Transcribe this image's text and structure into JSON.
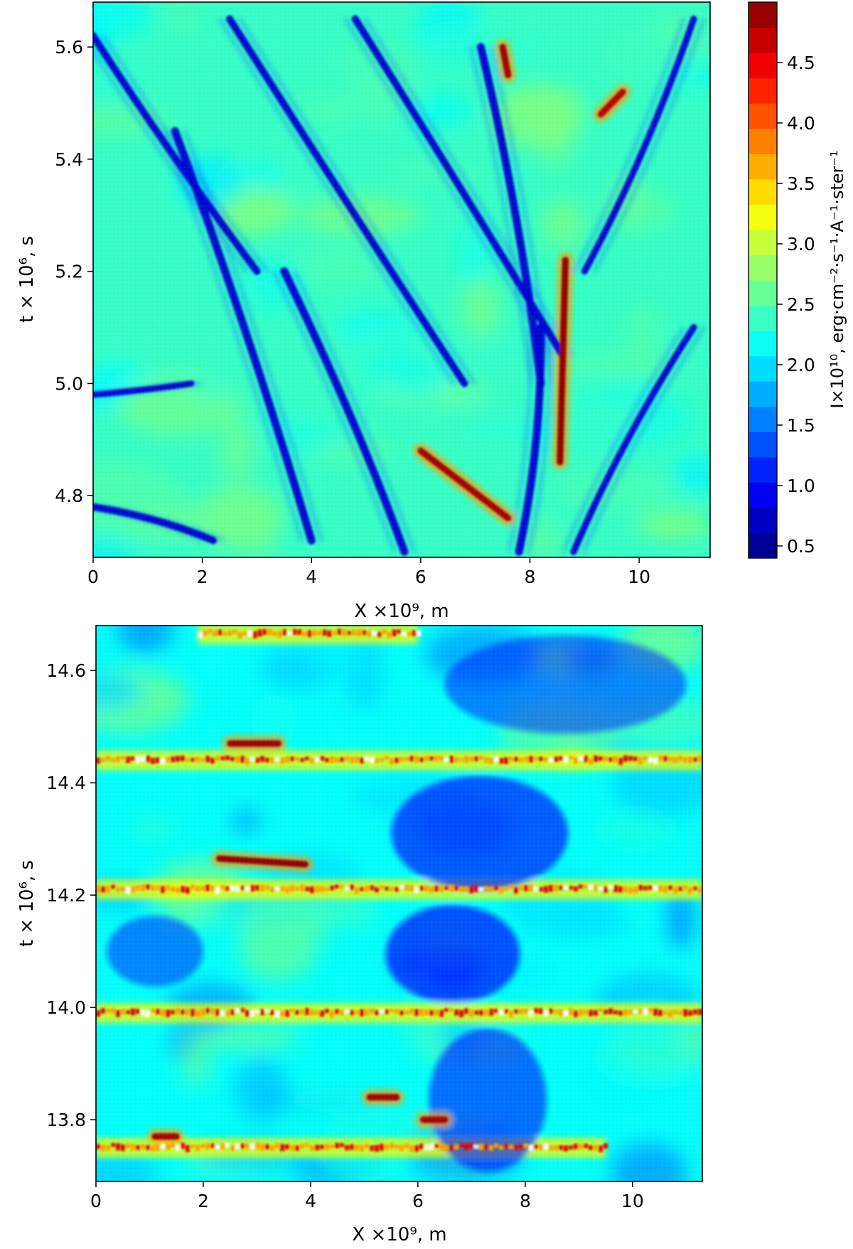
{
  "chart_data": [
    {
      "type": "heatmap",
      "xlabel": "X ×10⁹, m",
      "ylabel": "t × 10⁶, s",
      "xlim": [
        0,
        11.3
      ],
      "ylim": [
        4.69,
        5.68
      ],
      "x_ticks": [
        0,
        2,
        4,
        6,
        8,
        10
      ],
      "x_tick_labels": [
        "0",
        "2",
        "4",
        "6",
        "8",
        "10"
      ],
      "y_ticks": [
        4.8,
        5.0,
        5.2,
        5.4,
        5.6
      ],
      "y_tick_labels": [
        "4.8",
        "5.0",
        "5.2",
        "5.4",
        "5.6"
      ],
      "colormap": "jet",
      "colorbar": {
        "label": "I×10¹⁰, erg·cm⁻²·s⁻¹·A⁻¹·ster⁻¹",
        "range": [
          0.4,
          5.0
        ],
        "ticks": [
          0.5,
          1.0,
          1.5,
          2.0,
          2.5,
          3.0,
          3.5,
          4.0,
          4.5
        ],
        "tick_labels": [
          "0.5",
          "1.0",
          "1.5",
          "2.0",
          "2.5",
          "3.0",
          "3.5",
          "4.0",
          "4.5"
        ],
        "levels": 22
      },
      "features": [
        {
          "shape": "band",
          "x_from": 0.0,
          "t_from": 5.62,
          "x_to": 3.0,
          "t_to": 5.2,
          "intensity": 0.8
        },
        {
          "shape": "band",
          "x_from": 1.5,
          "t_from": 5.45,
          "x_to": 4.0,
          "t_to": 4.72,
          "intensity": 0.9
        },
        {
          "shape": "band",
          "x_from": 2.5,
          "t_from": 5.65,
          "x_to": 6.8,
          "t_to": 5.0,
          "intensity": 0.8
        },
        {
          "shape": "band",
          "x_from": 4.8,
          "t_from": 5.65,
          "x_to": 8.6,
          "t_to": 5.05,
          "intensity": 0.8
        },
        {
          "shape": "band",
          "x_from": 7.1,
          "t_from": 5.6,
          "x_to": 8.2,
          "t_to": 5.0,
          "intensity": 0.9
        },
        {
          "shape": "band",
          "x_from": 8.2,
          "t_from": 5.1,
          "x_to": 7.8,
          "t_to": 4.7,
          "intensity": 0.9
        },
        {
          "shape": "band",
          "x_from": 3.5,
          "t_from": 5.2,
          "x_to": 5.7,
          "t_to": 4.7,
          "intensity": 0.9
        },
        {
          "shape": "band",
          "x_from": 0.0,
          "t_from": 4.78,
          "x_to": 2.2,
          "t_to": 4.72,
          "intensity": 0.8
        },
        {
          "shape": "band",
          "x_from": 9.0,
          "t_from": 5.2,
          "x_to": 11.0,
          "t_to": 5.65,
          "intensity": 0.7
        },
        {
          "shape": "band",
          "x_from": 8.8,
          "t_from": 4.7,
          "x_to": 11.0,
          "t_to": 5.1,
          "intensity": 0.7
        },
        {
          "shape": "band",
          "x_from": 0.0,
          "t_from": 4.98,
          "x_to": 1.8,
          "t_to": 5.0,
          "intensity": 0.6
        },
        {
          "shape": "bright",
          "x_from": 8.65,
          "t_from": 5.22,
          "x_to": 8.55,
          "t_to": 4.86,
          "intensity": 1.0
        },
        {
          "shape": "bright",
          "x_from": 7.5,
          "t_from": 5.6,
          "x_to": 7.6,
          "t_to": 5.55,
          "intensity": 0.85
        },
        {
          "shape": "bright",
          "x_from": 6.0,
          "t_from": 4.88,
          "x_to": 7.6,
          "t_to": 4.76,
          "intensity": 0.8
        },
        {
          "shape": "bright",
          "x_from": 9.3,
          "t_from": 5.48,
          "x_to": 9.7,
          "t_to": 5.52,
          "intensity": 0.6
        }
      ]
    },
    {
      "type": "heatmap",
      "xlabel": "X ×10⁹, m",
      "ylabel": "t × 10⁶, s",
      "xlim": [
        0,
        11.3
      ],
      "ylim": [
        13.69,
        14.68
      ],
      "x_ticks": [
        0,
        2,
        4,
        6,
        8,
        10
      ],
      "x_tick_labels": [
        "0",
        "2",
        "4",
        "6",
        "8",
        "10"
      ],
      "y_ticks": [
        13.8,
        14.0,
        14.2,
        14.4,
        14.6
      ],
      "y_tick_labels": [
        "13.8",
        "14.0",
        "14.2",
        "14.4",
        "14.6"
      ],
      "colormap": "jet",
      "colorbar": {
        "range": [
          0.4,
          5.0
        ],
        "shared_with_top": true
      },
      "features": [
        {
          "shape": "bright-band",
          "t": 14.665,
          "x_from": 1.9,
          "x_to": 6.0,
          "intensity": 1.0
        },
        {
          "shape": "bright-band",
          "t": 14.44,
          "x_from": 0.0,
          "x_to": 11.3,
          "intensity": 0.95
        },
        {
          "shape": "bright-band",
          "t": 14.21,
          "x_from": 0.0,
          "x_to": 11.3,
          "intensity": 1.0
        },
        {
          "shape": "bright-band",
          "t": 13.99,
          "x_from": 0.0,
          "x_to": 11.3,
          "intensity": 1.0
        },
        {
          "shape": "bright-band",
          "t": 13.75,
          "x_from": 0.0,
          "x_to": 9.5,
          "intensity": 0.9
        },
        {
          "shape": "dark-region",
          "x_from": 5.5,
          "t_from": 14.4,
          "x_to": 8.8,
          "t_to": 14.22,
          "intensity": 0.8
        },
        {
          "shape": "dark-region",
          "x_from": 5.4,
          "t_from": 14.17,
          "x_to": 7.9,
          "t_to": 14.02,
          "intensity": 0.85
        },
        {
          "shape": "dark-region",
          "x_from": 6.2,
          "t_from": 13.95,
          "x_to": 8.4,
          "t_to": 13.72,
          "intensity": 0.7
        },
        {
          "shape": "dark-region",
          "x_from": 6.5,
          "t_from": 14.65,
          "x_to": 11.0,
          "t_to": 14.5,
          "intensity": 0.6
        },
        {
          "shape": "dark-region",
          "x_from": 0.2,
          "t_from": 14.15,
          "x_to": 2.0,
          "t_to": 14.05,
          "intensity": 0.6
        },
        {
          "shape": "bright",
          "x_from": 2.3,
          "t_from": 14.265,
          "x_to": 3.9,
          "t_to": 14.255,
          "intensity": 1.0
        },
        {
          "shape": "bright",
          "x_from": 2.5,
          "t_from": 14.47,
          "x_to": 3.4,
          "t_to": 14.47,
          "intensity": 0.85
        },
        {
          "shape": "bright",
          "x_from": 1.1,
          "t_from": 13.77,
          "x_to": 1.5,
          "t_to": 13.77,
          "intensity": 0.8
        },
        {
          "shape": "bright",
          "x_from": 5.1,
          "t_from": 13.84,
          "x_to": 5.6,
          "t_to": 13.84,
          "intensity": 0.8
        },
        {
          "shape": "bright",
          "x_from": 6.1,
          "t_from": 13.8,
          "x_to": 6.5,
          "t_to": 13.8,
          "intensity": 0.8
        }
      ]
    }
  ]
}
